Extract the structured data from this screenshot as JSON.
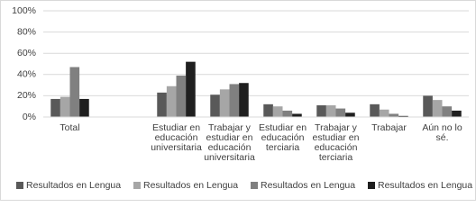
{
  "chart_data": {
    "type": "bar",
    "categories": [
      "Total",
      null,
      "Estudiar en educación universitaria",
      "Trabajar y estudiar en educación universitaria",
      "Estudiar en educación terciaria",
      "Trabajar y estudiar en educación terciaria",
      "Trabajar",
      "Aún no lo sé."
    ],
    "series": [
      {
        "name": "Resultados en Lengua",
        "color": "#595959",
        "values": [
          17,
          null,
          23,
          21,
          12,
          11,
          12,
          20
        ]
      },
      {
        "name": "Resultados en Lengua",
        "color": "#a6a6a6",
        "values": [
          19,
          null,
          29,
          26,
          10,
          11,
          7,
          16
        ]
      },
      {
        "name": "Resultados en Lengua",
        "color": "#808080",
        "values": [
          47,
          null,
          39,
          31,
          6,
          8,
          3,
          10
        ]
      },
      {
        "name": "Resultados en Lengua",
        "color": "#1f1f1f",
        "values": [
          17,
          null,
          52,
          32,
          3,
          4,
          1,
          6
        ]
      }
    ],
    "ylim": [
      0,
      100
    ],
    "yticks": [
      {
        "value": 0,
        "label": "0%"
      },
      {
        "value": 20,
        "label": "20%"
      },
      {
        "value": 40,
        "label": "40%"
      },
      {
        "value": 60,
        "label": "60%"
      },
      {
        "value": 80,
        "label": "80%"
      },
      {
        "value": 100,
        "label": "100%"
      }
    ],
    "grid": true,
    "legend": "bottom"
  }
}
